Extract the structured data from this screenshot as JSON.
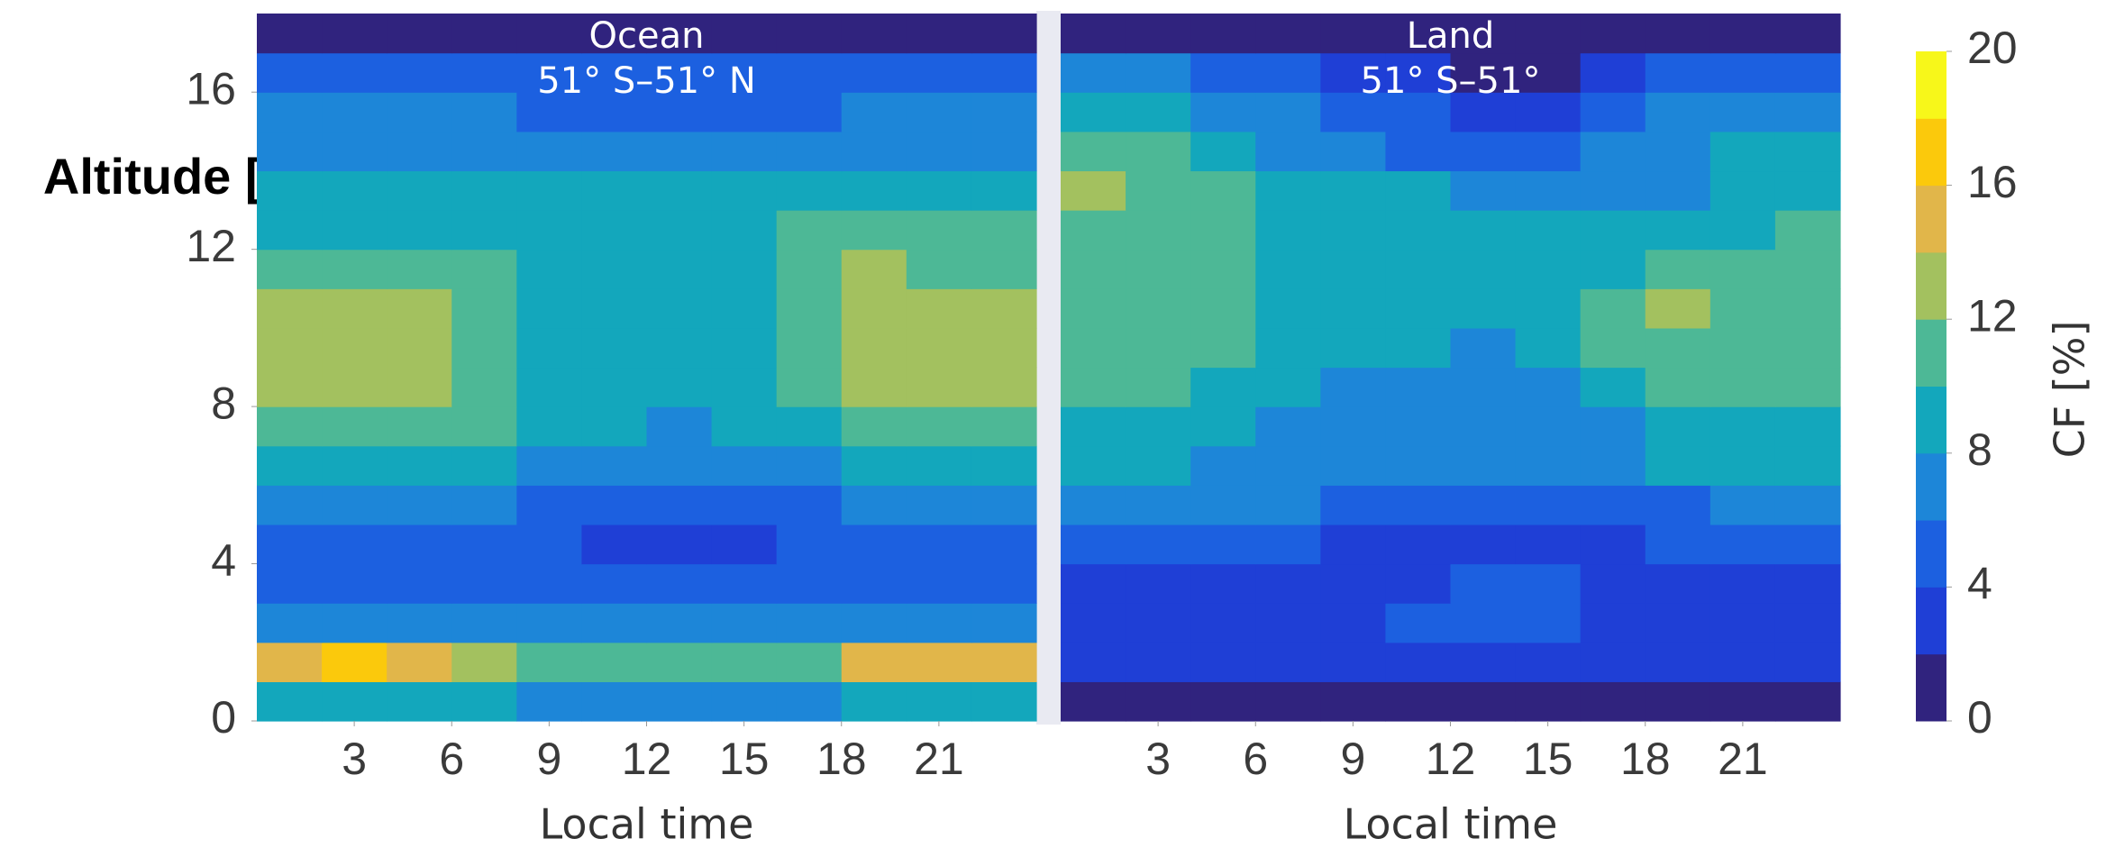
{
  "chart_data": [
    {
      "type": "heatmap",
      "title": "Ocean",
      "subtitle": "51° S–51° N",
      "x_label": "Local time",
      "y_label": "Altitude [km]",
      "x": [
        1,
        3,
        5,
        7,
        9,
        11,
        13,
        15,
        17,
        19,
        21,
        23
      ],
      "y": [
        0.5,
        1.5,
        2.5,
        3.5,
        4.5,
        5.5,
        6.5,
        7.5,
        8.5,
        9.5,
        10.5,
        11.5,
        12.5,
        13.5,
        14.5,
        15.5,
        16.5,
        17.5
      ],
      "values": [
        [
          9,
          9,
          9,
          9,
          7,
          7,
          7,
          7,
          7,
          9,
          9,
          9
        ],
        [
          15,
          16,
          15,
          13,
          11,
          10,
          10,
          10,
          11,
          14,
          15,
          15
        ],
        [
          7,
          7,
          7,
          7,
          6,
          6,
          6,
          6,
          6,
          7,
          7,
          7
        ],
        [
          5,
          5,
          5,
          5,
          4,
          4,
          4,
          4,
          4,
          5,
          5,
          5
        ],
        [
          5,
          5,
          5,
          5,
          4,
          3,
          3,
          3,
          4,
          5,
          5,
          5
        ],
        [
          7,
          7,
          7,
          6,
          5,
          5,
          4,
          5,
          5,
          6,
          7,
          7
        ],
        [
          9,
          9,
          9,
          8,
          7,
          6,
          6,
          6,
          7,
          8,
          9,
          9
        ],
        [
          11,
          11,
          11,
          10,
          9,
          8,
          7,
          8,
          9,
          11,
          11,
          11
        ],
        [
          12,
          13,
          12,
          11,
          9,
          8,
          8,
          8,
          10,
          12,
          12,
          12
        ],
        [
          13,
          13,
          12,
          11,
          9,
          8,
          8,
          9,
          11,
          13,
          13,
          12
        ],
        [
          13,
          12,
          12,
          11,
          9,
          9,
          9,
          9,
          11,
          13,
          13,
          12
        ],
        [
          11,
          11,
          11,
          10,
          9,
          9,
          9,
          9,
          11,
          12,
          11,
          11
        ],
        [
          9,
          9,
          9,
          9,
          9,
          9,
          9,
          9,
          10,
          10,
          10,
          10
        ],
        [
          8,
          8,
          8,
          8,
          8,
          8,
          8,
          8,
          8,
          8,
          8,
          8
        ],
        [
          7,
          7,
          7,
          7,
          7,
          7,
          7,
          7,
          7,
          7,
          7,
          7
        ],
        [
          7,
          7,
          7,
          6,
          5,
          5,
          5,
          5,
          5,
          6,
          7,
          7
        ],
        [
          5,
          5,
          5,
          5,
          5,
          5,
          5,
          5,
          5,
          5,
          5,
          5
        ],
        [
          1,
          1,
          1,
          1,
          1,
          1,
          1,
          1,
          1,
          1,
          1,
          1
        ]
      ],
      "xlim": [
        0,
        24
      ],
      "ylim": [
        0,
        18
      ],
      "xticks": [
        3,
        6,
        9,
        12,
        15,
        18,
        21
      ],
      "yticks": [
        0,
        4,
        8,
        12,
        16
      ]
    },
    {
      "type": "heatmap",
      "title": "Land",
      "subtitle": "51° S–51°",
      "x_label": "Local time",
      "x": [
        1,
        3,
        5,
        7,
        9,
        11,
        13,
        15,
        17,
        19,
        21,
        23
      ],
      "y": [
        0.5,
        1.5,
        2.5,
        3.5,
        4.5,
        5.5,
        6.5,
        7.5,
        8.5,
        9.5,
        10.5,
        11.5,
        12.5,
        13.5,
        14.5,
        15.5,
        16.5,
        17.5
      ],
      "values": [
        [
          1,
          1,
          1,
          1,
          1,
          1,
          1,
          1,
          1,
          1,
          1,
          1
        ],
        [
          3,
          3,
          3,
          3,
          3,
          3,
          3,
          3,
          3,
          3,
          3,
          3
        ],
        [
          3,
          3,
          3,
          3,
          3,
          4,
          5,
          5,
          3,
          3,
          3,
          3
        ],
        [
          3,
          3,
          3,
          3,
          3,
          3,
          5,
          4,
          3,
          3,
          3,
          3
        ],
        [
          5,
          5,
          5,
          5,
          3,
          3,
          3,
          3,
          3,
          5,
          5,
          5
        ],
        [
          7,
          7,
          7,
          6,
          5,
          5,
          5,
          5,
          5,
          5,
          7,
          7
        ],
        [
          9,
          9,
          7,
          7,
          7,
          7,
          7,
          7,
          7,
          9,
          9,
          9
        ],
        [
          9,
          9,
          9,
          7,
          7,
          7,
          7,
          7,
          7,
          9,
          9,
          9
        ],
        [
          11,
          11,
          9,
          9,
          7,
          7,
          7,
          7,
          9,
          11,
          11,
          11
        ],
        [
          11,
          11,
          11,
          9,
          9,
          9,
          7,
          9,
          11,
          11,
          11,
          11
        ],
        [
          11,
          11,
          11,
          9,
          9,
          9,
          9,
          9,
          11,
          13,
          11,
          11
        ],
        [
          11,
          11,
          11,
          9,
          9,
          9,
          9,
          9,
          9,
          11,
          11,
          11
        ],
        [
          11,
          11,
          11,
          9,
          9,
          9,
          9,
          9,
          9,
          9,
          9,
          11
        ],
        [
          13,
          11,
          11,
          9,
          9,
          9,
          7,
          7,
          7,
          7,
          9,
          9
        ],
        [
          11,
          11,
          9,
          7,
          7,
          5,
          5,
          5,
          7,
          7,
          9,
          9
        ],
        [
          9,
          9,
          7,
          7,
          5,
          5,
          3,
          3,
          5,
          7,
          7,
          7
        ],
        [
          7,
          7,
          5,
          5,
          3,
          3,
          1,
          1,
          3,
          5,
          5,
          5
        ],
        [
          1,
          1,
          1,
          1,
          1,
          1,
          1,
          1,
          1,
          1,
          1,
          1
        ]
      ],
      "xlim": [
        0,
        24
      ],
      "ylim": [
        0,
        18
      ],
      "xticks": [
        3,
        6,
        9,
        12,
        15,
        18,
        21
      ]
    }
  ],
  "colorbar": {
    "label": "CF [%]",
    "levels": [
      0,
      2,
      4,
      6,
      8,
      10,
      12,
      14,
      16,
      18,
      20
    ],
    "colors": [
      "#30237e",
      "#1f3fd6",
      "#1c60e0",
      "#1d86d8",
      "#13a7bc",
      "#4db896",
      "#a3c15f",
      "#e1b64a",
      "#fbc90c",
      "#f7f71a"
    ],
    "ticks": [
      0,
      4,
      8,
      12,
      16,
      20
    ]
  }
}
